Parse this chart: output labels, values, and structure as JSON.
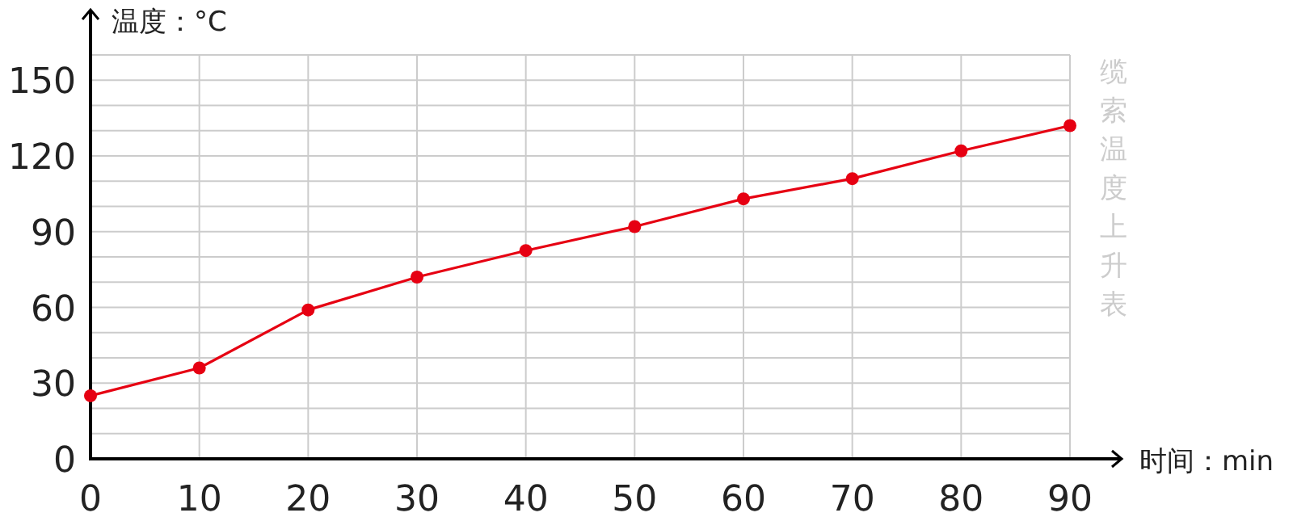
{
  "chart_data": {
    "type": "line",
    "title": "缆索温度上升表",
    "xlabel": "时间：min",
    "ylabel": "温度：°C",
    "x": [
      0,
      10,
      20,
      30,
      40,
      50,
      60,
      70,
      80,
      90
    ],
    "series": [
      {
        "color": "#e60012",
        "values": [
          25,
          36,
          59,
          72,
          82.5,
          92,
          103,
          111,
          122,
          132
        ]
      }
    ],
    "xlim": [
      0,
      90
    ],
    "xticks": [
      0,
      10,
      20,
      30,
      40,
      50,
      60,
      70,
      80,
      90
    ],
    "ylim": [
      0,
      160
    ],
    "yticks": [
      0,
      {
        "value": 10,
        "label": null
      },
      {
        "value": 20,
        "label": null
      },
      30,
      {
        "value": 40,
        "label": null
      },
      {
        "value": 50,
        "label": null
      },
      60,
      {
        "value": 70,
        "label": null
      },
      {
        "value": 80,
        "label": null
      },
      90,
      {
        "value": 100,
        "label": null
      },
      {
        "value": 110,
        "label": null
      },
      120,
      {
        "value": 130,
        "label": null
      },
      {
        "value": 140,
        "label": null
      },
      150,
      {
        "value": 160,
        "label": null
      }
    ],
    "grid": true,
    "marker": "circle",
    "line_style": "solid"
  }
}
